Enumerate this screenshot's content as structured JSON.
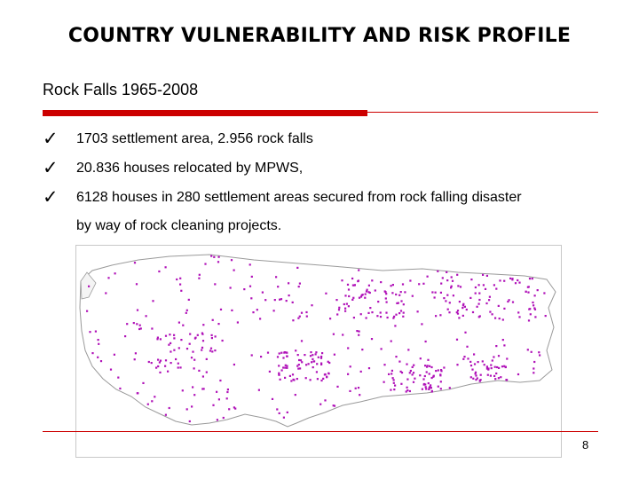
{
  "slide": {
    "title": "COUNTRY VULNERABILITY AND RISK PROFILE",
    "subtitle": "Rock Falls  1965-2008",
    "bullets": [
      {
        "lines": [
          "1703 settlement area,  2.956 rock falls"
        ]
      },
      {
        "lines": [
          "20.836 houses relocated by MPWS,"
        ]
      },
      {
        "lines": [
          "6128 houses in 280 settlement areas secured from rock falling disaster",
          "by way of rock cleaning projects."
        ]
      }
    ],
    "bullet_icon": "check-icon",
    "page_number": "8"
  },
  "map": {
    "icon": "turkey-map",
    "dot_color": "#b012b8",
    "land_color": "#ffffff",
    "border_color": "#9a9a9a"
  }
}
